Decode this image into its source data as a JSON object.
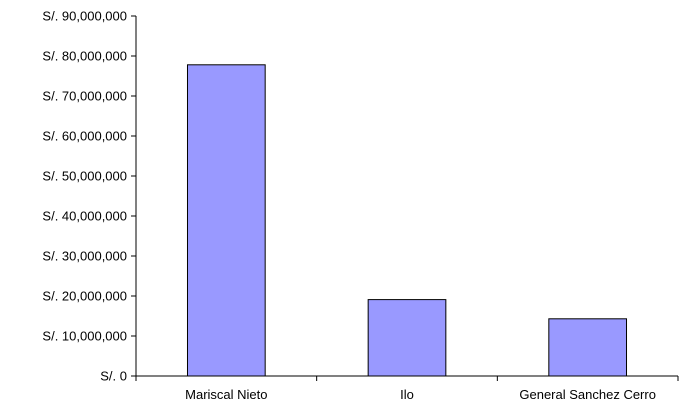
{
  "chart_data": {
    "type": "bar",
    "title": "",
    "xlabel": "",
    "ylabel": "",
    "categories": [
      "Mariscal Nieto",
      "Ilo",
      "General Sanchez Cerro"
    ],
    "values": [
      77800000,
      19100000,
      14300000
    ],
    "ylim": [
      0,
      90000000
    ],
    "y_ticks": [
      0,
      10000000,
      20000000,
      30000000,
      40000000,
      50000000,
      60000000,
      70000000,
      80000000,
      90000000
    ],
    "y_tick_labels": [
      "S/. 0",
      "S/. 10,000,000",
      "S/. 20,000,000",
      "S/. 30,000,000",
      "S/. 40,000,000",
      "S/. 50,000,000",
      "S/. 60,000,000",
      "S/. 70,000,000",
      "S/. 80,000,000",
      "S/. 90,000,000"
    ],
    "grid": false,
    "legend": "none",
    "bar_color": "#9999ff",
    "bar_edge_color": "#000000"
  }
}
